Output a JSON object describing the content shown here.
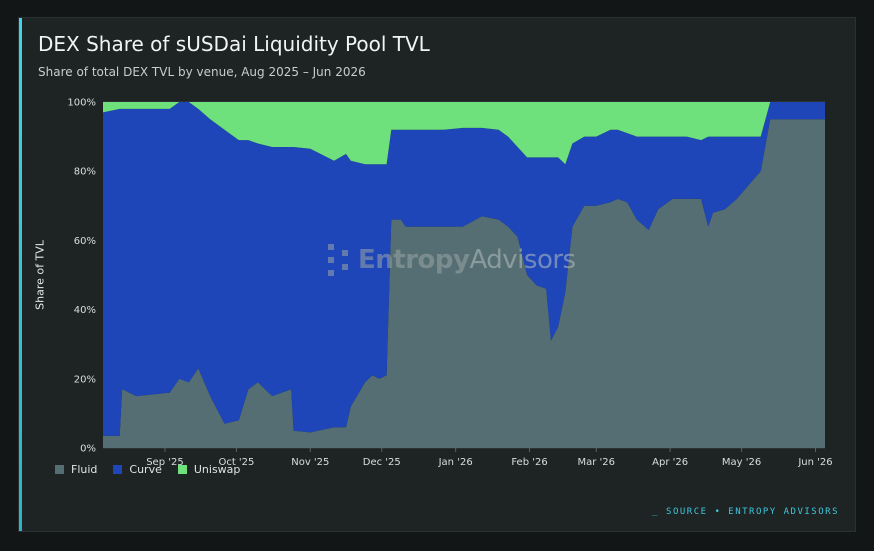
{
  "card": {
    "title": "DEX Share of sUSDai Liquidity Pool TVL",
    "subtitle": "Share of total DEX TVL by venue, Aug 2025 – Jun 2026",
    "source": "_ SOURCE • ENTROPY ADVISORS",
    "watermark_bold": "Entropy",
    "watermark_light": "Advisors",
    "accent_color": "#3fd5e8"
  },
  "legend": [
    {
      "name": "Fluid",
      "color": "#546e73"
    },
    {
      "name": "Curve",
      "color": "#1f46b8"
    },
    {
      "name": "Uniswap",
      "color": "#6ee07c"
    }
  ],
  "chart_data": {
    "type": "area",
    "stacked": true,
    "ylabel": "Share of TVL",
    "ylim": [
      0,
      100
    ],
    "yticks": [
      "0%",
      "20%",
      "40%",
      "60%",
      "80%",
      "100%"
    ],
    "xlim": [
      "2025-08-20",
      "2026-06-19"
    ],
    "xticks": [
      {
        "date": "2025-09-15",
        "label": "Sep '25"
      },
      {
        "date": "2025-10-15",
        "label": "Oct '25"
      },
      {
        "date": "2025-11-15",
        "label": "Nov '25"
      },
      {
        "date": "2025-12-15",
        "label": "Dec '25"
      },
      {
        "date": "2026-01-15",
        "label": "Jan '26"
      },
      {
        "date": "2026-02-15",
        "label": "Feb '26"
      },
      {
        "date": "2026-03-15",
        "label": "Mar '26"
      },
      {
        "date": "2026-04-15",
        "label": "Apr '26"
      },
      {
        "date": "2026-05-15",
        "label": "May '26"
      },
      {
        "date": "2026-06-15",
        "label": "Jun '26"
      }
    ],
    "grid": true,
    "legend_position": "bottom-left",
    "series": [
      {
        "name": "Fluid",
        "color": "#546e73",
        "points": [
          [
            "2025-08-20",
            3.5
          ],
          [
            "2025-08-27",
            3.5
          ],
          [
            "2025-08-28",
            17
          ],
          [
            "2025-09-03",
            15
          ],
          [
            "2025-09-10",
            15.5
          ],
          [
            "2025-09-17",
            16
          ],
          [
            "2025-09-21",
            20
          ],
          [
            "2025-09-25",
            19
          ],
          [
            "2025-09-29",
            23
          ],
          [
            "2025-10-04",
            15
          ],
          [
            "2025-10-10",
            7
          ],
          [
            "2025-10-16",
            8
          ],
          [
            "2025-10-20",
            17
          ],
          [
            "2025-10-24",
            19
          ],
          [
            "2025-10-30",
            15
          ],
          [
            "2025-11-07",
            17
          ],
          [
            "2025-11-08",
            5
          ],
          [
            "2025-11-15",
            4.5
          ],
          [
            "2025-11-25",
            6
          ],
          [
            "2025-11-30",
            6
          ],
          [
            "2025-12-02",
            12
          ],
          [
            "2025-12-08",
            19
          ],
          [
            "2025-12-11",
            21
          ],
          [
            "2025-12-14",
            20
          ],
          [
            "2025-12-17",
            21
          ],
          [
            "2025-12-19",
            66
          ],
          [
            "2025-12-23",
            66
          ],
          [
            "2025-12-25",
            64
          ],
          [
            "2026-01-10",
            64
          ],
          [
            "2026-01-18",
            64
          ],
          [
            "2026-01-26",
            67
          ],
          [
            "2026-02-02",
            66
          ],
          [
            "2026-02-06",
            64
          ],
          [
            "2026-02-10",
            61
          ],
          [
            "2026-02-14",
            50
          ],
          [
            "2026-02-18",
            47
          ],
          [
            "2026-02-22",
            46
          ],
          [
            "2026-02-24",
            31
          ],
          [
            "2026-02-27",
            35
          ],
          [
            "2026-03-02",
            45
          ],
          [
            "2026-03-05",
            64
          ],
          [
            "2026-03-10",
            70
          ],
          [
            "2026-03-15",
            70
          ],
          [
            "2026-03-21",
            71
          ],
          [
            "2026-03-24",
            72
          ],
          [
            "2026-03-28",
            71
          ],
          [
            "2026-04-01",
            66
          ],
          [
            "2026-04-06",
            63
          ],
          [
            "2026-04-10",
            69
          ],
          [
            "2026-04-16",
            72
          ],
          [
            "2026-04-22",
            72
          ],
          [
            "2026-04-28",
            72
          ],
          [
            "2026-05-01",
            64
          ],
          [
            "2026-05-03",
            68
          ],
          [
            "2026-05-08",
            69
          ],
          [
            "2026-05-13",
            72
          ],
          [
            "2026-05-18",
            76
          ],
          [
            "2026-05-23",
            80
          ],
          [
            "2026-05-27",
            95
          ],
          [
            "2026-06-19",
            95
          ]
        ]
      },
      {
        "name": "Curve",
        "color": "#1f46b8",
        "points": [
          [
            "2025-08-20",
            93.5
          ],
          [
            "2025-08-27",
            94.5
          ],
          [
            "2025-08-28",
            81
          ],
          [
            "2025-09-03",
            83
          ],
          [
            "2025-09-10",
            82.5
          ],
          [
            "2025-09-17",
            82
          ],
          [
            "2025-09-21",
            80
          ],
          [
            "2025-09-25",
            81
          ],
          [
            "2025-09-29",
            75
          ],
          [
            "2025-10-04",
            80
          ],
          [
            "2025-10-10",
            85
          ],
          [
            "2025-10-16",
            81
          ],
          [
            "2025-10-20",
            72
          ],
          [
            "2025-10-24",
            69
          ],
          [
            "2025-10-30",
            72
          ],
          [
            "2025-11-07",
            70
          ],
          [
            "2025-11-08",
            82
          ],
          [
            "2025-11-15",
            82
          ],
          [
            "2025-11-25",
            77
          ],
          [
            "2025-11-30",
            79
          ],
          [
            "2025-12-02",
            71
          ],
          [
            "2025-12-08",
            63
          ],
          [
            "2025-12-11",
            61
          ],
          [
            "2025-12-14",
            62
          ],
          [
            "2025-12-17",
            61
          ],
          [
            "2025-12-19",
            26
          ],
          [
            "2025-12-23",
            26
          ],
          [
            "2025-12-25",
            28
          ],
          [
            "2026-01-10",
            28
          ],
          [
            "2026-01-18",
            28.5
          ],
          [
            "2026-01-26",
            25.5
          ],
          [
            "2026-02-02",
            26
          ],
          [
            "2026-02-06",
            26
          ],
          [
            "2026-02-10",
            26
          ],
          [
            "2026-02-14",
            34
          ],
          [
            "2026-02-18",
            37
          ],
          [
            "2026-02-22",
            38
          ],
          [
            "2026-02-24",
            53
          ],
          [
            "2026-02-27",
            49
          ],
          [
            "2026-03-02",
            37
          ],
          [
            "2026-03-05",
            24
          ],
          [
            "2026-03-10",
            20
          ],
          [
            "2026-03-15",
            20
          ],
          [
            "2026-03-21",
            21
          ],
          [
            "2026-03-24",
            20
          ],
          [
            "2026-03-28",
            20
          ],
          [
            "2026-04-01",
            24
          ],
          [
            "2026-04-06",
            27
          ],
          [
            "2026-04-10",
            21
          ],
          [
            "2026-04-16",
            18
          ],
          [
            "2026-04-22",
            18
          ],
          [
            "2026-04-28",
            17
          ],
          [
            "2026-05-01",
            26
          ],
          [
            "2026-05-03",
            22
          ],
          [
            "2026-05-08",
            21
          ],
          [
            "2026-05-13",
            18
          ],
          [
            "2026-05-18",
            14
          ],
          [
            "2026-05-23",
            10
          ],
          [
            "2026-05-27",
            5
          ],
          [
            "2026-06-19",
            5
          ]
        ]
      },
      {
        "name": "Uniswap",
        "color": "#6ee07c",
        "points": [
          [
            "2025-08-20",
            3
          ],
          [
            "2025-08-27",
            2
          ],
          [
            "2025-08-28",
            2
          ],
          [
            "2025-09-03",
            2
          ],
          [
            "2025-09-10",
            2
          ],
          [
            "2025-09-17",
            2
          ],
          [
            "2025-09-21",
            0
          ],
          [
            "2025-09-25",
            0
          ],
          [
            "2025-09-29",
            2
          ],
          [
            "2025-10-04",
            5
          ],
          [
            "2025-10-10",
            8
          ],
          [
            "2025-10-16",
            11
          ],
          [
            "2025-10-20",
            11
          ],
          [
            "2025-10-24",
            12
          ],
          [
            "2025-10-30",
            13
          ],
          [
            "2025-11-07",
            13
          ],
          [
            "2025-11-08",
            13
          ],
          [
            "2025-11-15",
            13.5
          ],
          [
            "2025-11-25",
            17
          ],
          [
            "2025-11-30",
            15
          ],
          [
            "2025-12-02",
            17
          ],
          [
            "2025-12-08",
            18
          ],
          [
            "2025-12-11",
            18
          ],
          [
            "2025-12-14",
            18
          ],
          [
            "2025-12-17",
            18
          ],
          [
            "2025-12-19",
            8
          ],
          [
            "2025-12-23",
            8
          ],
          [
            "2025-12-25",
            8
          ],
          [
            "2026-01-10",
            8
          ],
          [
            "2026-01-18",
            7.5
          ],
          [
            "2026-01-26",
            7.5
          ],
          [
            "2026-02-02",
            8
          ],
          [
            "2026-02-06",
            10
          ],
          [
            "2026-02-10",
            13
          ],
          [
            "2026-02-14",
            16
          ],
          [
            "2026-02-18",
            16
          ],
          [
            "2026-02-22",
            16
          ],
          [
            "2026-02-24",
            16
          ],
          [
            "2026-02-27",
            16
          ],
          [
            "2026-03-02",
            18
          ],
          [
            "2026-03-05",
            12
          ],
          [
            "2026-03-10",
            10
          ],
          [
            "2026-03-15",
            10
          ],
          [
            "2026-03-21",
            8
          ],
          [
            "2026-03-24",
            8
          ],
          [
            "2026-03-28",
            9
          ],
          [
            "2026-04-01",
            10
          ],
          [
            "2026-04-06",
            10
          ],
          [
            "2026-04-10",
            10
          ],
          [
            "2026-04-16",
            10
          ],
          [
            "2026-04-22",
            10
          ],
          [
            "2026-04-28",
            11
          ],
          [
            "2026-05-01",
            10
          ],
          [
            "2026-05-03",
            10
          ],
          [
            "2026-05-08",
            10
          ],
          [
            "2026-05-13",
            10
          ],
          [
            "2026-05-18",
            10
          ],
          [
            "2026-05-23",
            10
          ],
          [
            "2026-05-27",
            0
          ],
          [
            "2026-06-19",
            0
          ]
        ]
      }
    ]
  }
}
